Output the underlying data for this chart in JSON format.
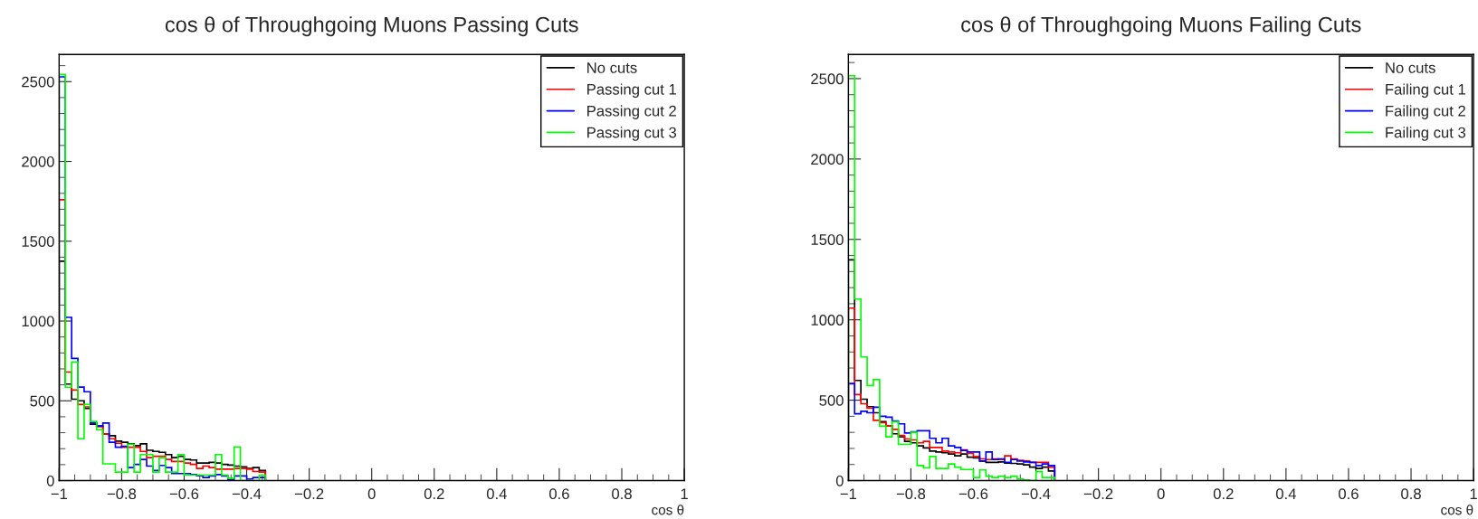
{
  "chart_data": [
    {
      "type": "histogram",
      "title": "cos θ of Throughgoing Muons Passing Cuts",
      "xlabel": "cos θ",
      "bins": [
        -1,
        -0.98,
        -0.96,
        -0.94,
        -0.92,
        -0.9,
        -0.88,
        -0.86,
        -0.84,
        -0.82,
        -0.8,
        -0.78,
        -0.76,
        -0.74,
        -0.72,
        -0.7,
        -0.68,
        -0.66,
        -0.64,
        -0.62,
        -0.6,
        -0.58,
        -0.56,
        -0.54,
        -0.52,
        -0.5,
        -0.48,
        -0.46,
        -0.44,
        -0.42,
        -0.4,
        -0.38,
        -0.36,
        -0.34
      ],
      "xlim": [
        -1,
        1
      ],
      "xticks": [
        {
          "value": -1,
          "label": "−1"
        },
        {
          "value": -0.8,
          "label": "−0.8"
        },
        {
          "value": -0.6,
          "label": "−0.6"
        },
        {
          "value": -0.4,
          "label": "−0.4"
        },
        {
          "value": -0.2,
          "label": "−0.2"
        },
        0,
        0.2,
        0.4,
        0.6,
        0.8,
        1
      ],
      "ylim": [
        0,
        2670
      ],
      "yticks": [
        0,
        500,
        1000,
        1500,
        2000,
        2500
      ],
      "legend": "top right",
      "grid": false,
      "series": [
        {
          "name": "No cuts",
          "color": "#000000",
          "values": [
            1375,
            605,
            510,
            500,
            452,
            354,
            342,
            291,
            281,
            247,
            240,
            230,
            219,
            230,
            190,
            183,
            177,
            163,
            144,
            152,
            133,
            129,
            110,
            110,
            114,
            110,
            101,
            97,
            91,
            86,
            76,
            82,
            63
          ]
        },
        {
          "name": "Passing cut 1",
          "color": "#ff0000",
          "values": [
            1760,
            680,
            567,
            477,
            462,
            361,
            338,
            291,
            262,
            234,
            209,
            209,
            209,
            183,
            144,
            152,
            152,
            133,
            120,
            120,
            110,
            101,
            76,
            91,
            82,
            72,
            72,
            72,
            76,
            76,
            72,
            57,
            53
          ]
        },
        {
          "name": "Passing cut 2",
          "color": "#0000ff",
          "values": [
            2530,
            1023,
            766,
            586,
            557,
            361,
            342,
            361,
            240,
            209,
            215,
            82,
            101,
            133,
            91,
            63,
            95,
            82,
            44,
            44,
            44,
            38,
            30,
            19,
            29,
            38,
            29,
            6,
            29,
            29,
            10,
            19,
            19
          ]
        },
        {
          "name": "Passing cut 3",
          "color": "#00ff00",
          "values": [
            2545,
            585,
            743,
            262,
            477,
            371,
            319,
            105,
            105,
            53,
            53,
            228,
            53,
            163,
            163,
            53,
            144,
            53,
            53,
            163,
            34,
            34,
            34,
            34,
            34,
            163,
            34,
            15,
            211,
            0,
            0,
            0,
            34
          ]
        }
      ]
    },
    {
      "type": "histogram",
      "title": "cos θ of Throughgoing Muons Failing Cuts",
      "xlabel": "cos θ",
      "bins": [
        -1,
        -0.98,
        -0.96,
        -0.94,
        -0.92,
        -0.9,
        -0.88,
        -0.86,
        -0.84,
        -0.82,
        -0.8,
        -0.78,
        -0.76,
        -0.74,
        -0.72,
        -0.7,
        -0.68,
        -0.66,
        -0.64,
        -0.62,
        -0.6,
        -0.58,
        -0.56,
        -0.54,
        -0.52,
        -0.5,
        -0.48,
        -0.46,
        -0.44,
        -0.42,
        -0.4,
        -0.38,
        -0.36,
        -0.34
      ],
      "xlim": [
        -1,
        1
      ],
      "xticks": [
        {
          "value": -1,
          "label": "−1"
        },
        {
          "value": -0.8,
          "label": "−0.8"
        },
        {
          "value": -0.6,
          "label": "−0.6"
        },
        {
          "value": -0.4,
          "label": "−0.4"
        },
        {
          "value": -0.2,
          "label": "−0.2"
        },
        0,
        0.2,
        0.4,
        0.6,
        0.8,
        1
      ],
      "ylim": [
        0,
        2650
      ],
      "yticks": [
        0,
        500,
        1000,
        1500,
        2000,
        2500
      ],
      "legend": "top right",
      "grid": false,
      "series": [
        {
          "name": "No cuts",
          "color": "#000000",
          "values": [
            1373,
            623,
            506,
            460,
            422,
            366,
            341,
            291,
            272,
            244,
            235,
            216,
            203,
            184,
            178,
            173,
            165,
            154,
            165,
            146,
            141,
            122,
            113,
            113,
            116,
            109,
            107,
            103,
            98,
            84,
            75,
            84,
            60
          ]
        },
        {
          "name": "Failing cut 1",
          "color": "#ff0000",
          "values": [
            1073,
            535,
            478,
            450,
            375,
            360,
            341,
            319,
            281,
            259,
            253,
            235,
            244,
            206,
            206,
            184,
            178,
            173,
            191,
            169,
            150,
            135,
            131,
            135,
            131,
            154,
            135,
            126,
            122,
            113,
            113,
            113,
            84
          ]
        },
        {
          "name": "Failing cut 2",
          "color": "#0000ff",
          "values": [
            604,
            416,
            431,
            422,
            456,
            400,
            394,
            371,
            353,
            296,
            304,
            310,
            310,
            263,
            235,
            263,
            216,
            206,
            188,
            178,
            178,
            122,
            178,
            131,
            135,
            113,
            131,
            122,
            116,
            113,
            94,
            103,
            94
          ]
        },
        {
          "name": "Failing cut 3",
          "color": "#00ff00",
          "values": [
            2518,
            1129,
            769,
            591,
            628,
            338,
            272,
            366,
            225,
            225,
            300,
            94,
            79,
            150,
            75,
            75,
            103,
            84,
            69,
            69,
            19,
            66,
            28,
            19,
            28,
            19,
            28,
            9,
            4,
            0,
            56,
            19,
            19
          ]
        }
      ]
    }
  ]
}
